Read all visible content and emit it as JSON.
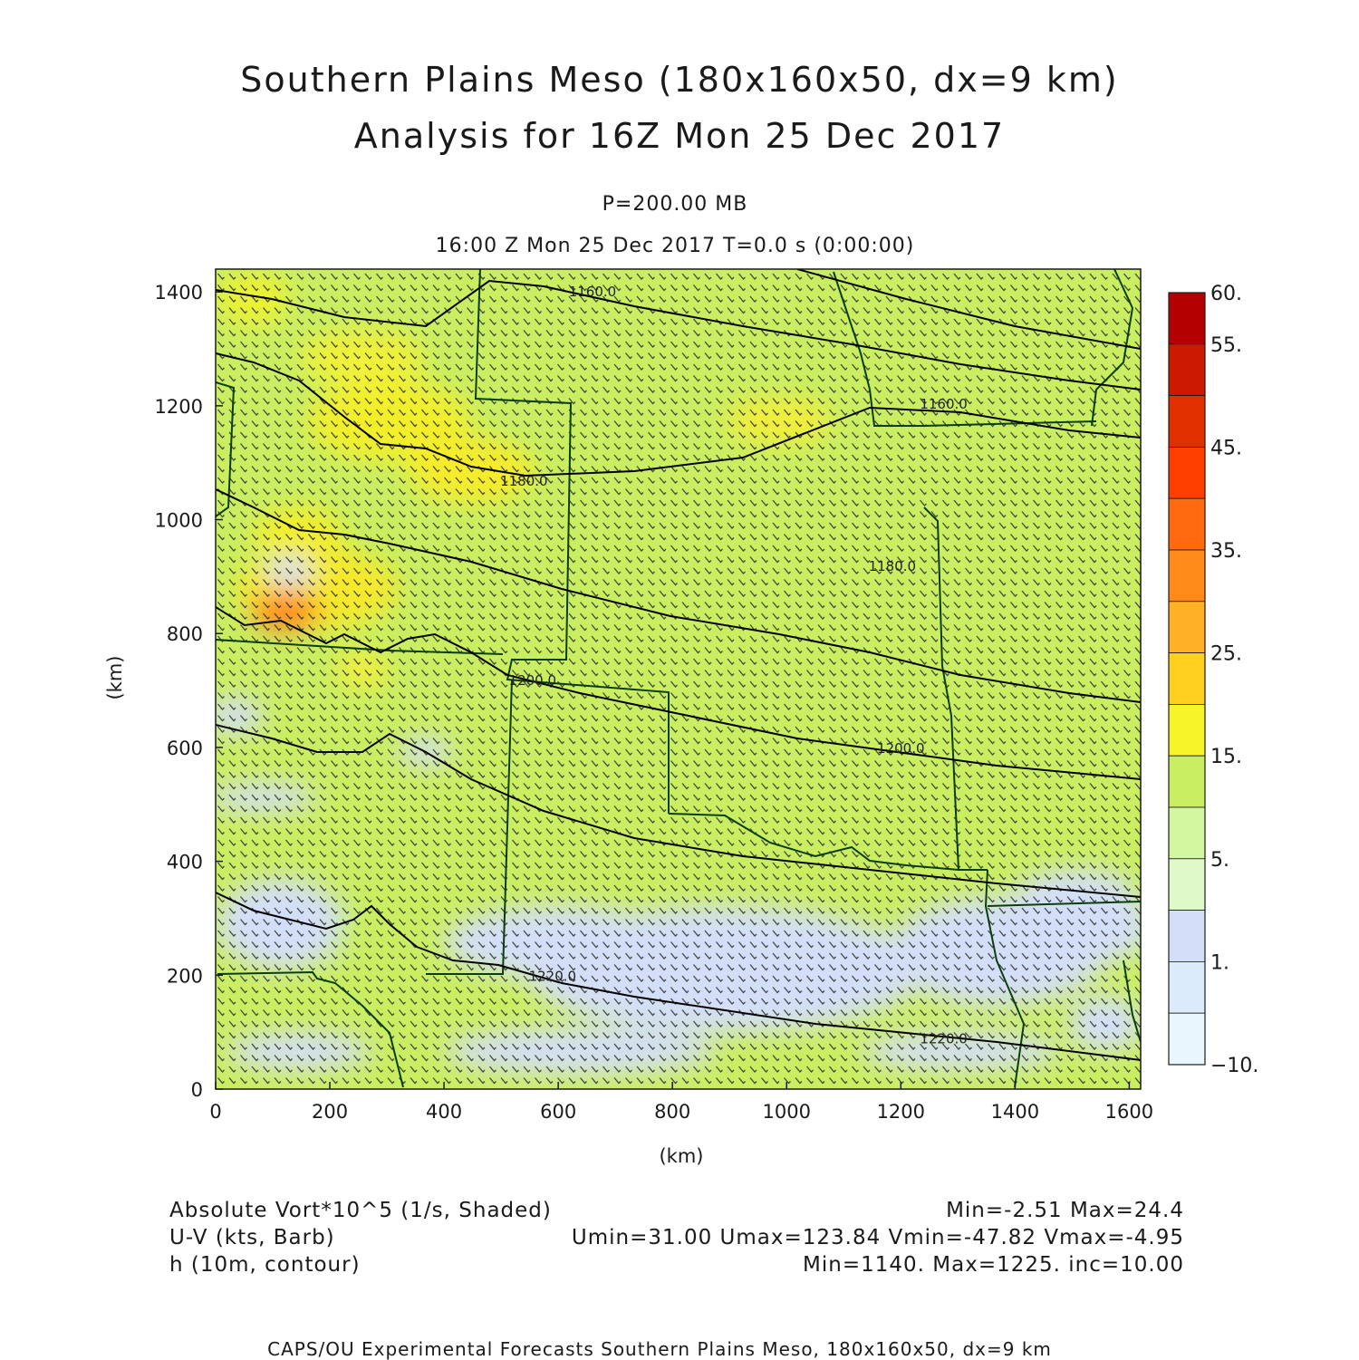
{
  "title": {
    "line1": "Southern Plains Meso (180x160x50, dx=9 km)",
    "line2": "Analysis for 16Z Mon 25 Dec 2017"
  },
  "subtitle": {
    "level": "P=200.00 MB",
    "valid": "16:00 Z Mon 25 Dec 2017    T=0.0 s (0:00:00)"
  },
  "axes": {
    "xlabel": "(km)",
    "ylabel": "(km)",
    "xlim": [
      0,
      1620
    ],
    "ylim": [
      0,
      1440
    ],
    "xticks": [
      "0",
      "200",
      "400",
      "600",
      "800",
      "1000",
      "1200",
      "1400",
      "1600"
    ],
    "yticks": [
      "0",
      "200",
      "400",
      "600",
      "800",
      "1000",
      "1200",
      "1400"
    ]
  },
  "colorbar": {
    "labels": [
      "60.",
      "55.",
      "45.",
      "35.",
      "25.",
      "15.",
      "5.",
      "1.",
      "−10."
    ],
    "colors": [
      "#b40000",
      "#cc1a00",
      "#e03000",
      "#ff3f00",
      "#ff6a10",
      "#ff8a1a",
      "#ffb024",
      "#ffd020",
      "#f6f52a",
      "#c9ee62",
      "#d3f79e",
      "#e0f9c8",
      "#d3dff8",
      "#dbebfb",
      "#eaf6fd"
    ]
  },
  "contour_labels": [
    {
      "text": "1160.0",
      "x_km": 660,
      "y_km": 1392
    },
    {
      "text": "1160.0",
      "x_km": 1275,
      "y_km": 1195
    },
    {
      "text": "1180.0",
      "x_km": 540,
      "y_km": 1060
    },
    {
      "text": "1180.0",
      "x_km": 1185,
      "y_km": 910
    },
    {
      "text": "1200.0",
      "x_km": 555,
      "y_km": 710
    },
    {
      "text": "1200.0",
      "x_km": 1200,
      "y_km": 590
    },
    {
      "text": "1220.0",
      "x_km": 590,
      "y_km": 190
    },
    {
      "text": "1220.0",
      "x_km": 1275,
      "y_km": 80
    }
  ],
  "legend": {
    "left": [
      "Absolute Vort*10^5 (1/s, Shaded)",
      "U-V (kts, Barb)",
      "h (10m, contour)"
    ],
    "right": [
      "Min=-2.51 Max=24.4",
      "Umin=31.00 Umax=123.84 Vmin=-47.82 Vmax=-4.95",
      "Min=1140. Max=1225. inc=10.00"
    ]
  },
  "credit": "CAPS/OU Experimental Forecasts  Southern Plains Meso, 180x160x50, dx=9 km",
  "colors": {
    "base_fill": "#c9ee62",
    "contour": "#000000",
    "boundary": "#0b3d0b",
    "barb": "#2b2b2b"
  }
}
